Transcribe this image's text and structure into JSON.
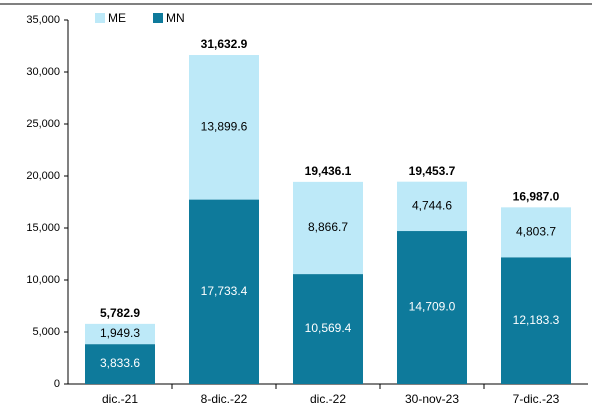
{
  "chart_data": {
    "type": "stacked_bar",
    "categories": [
      "dic.-21",
      "8-dic.-22",
      "dic.-22",
      "30-nov-23",
      "7-dic.-23"
    ],
    "series": [
      {
        "name": "MN",
        "color": "#0e7a9b",
        "values": [
          3833.6,
          17733.4,
          10569.4,
          14709.0,
          12183.3
        ],
        "value_labels": [
          "3,833.6",
          "17,733.4",
          "10,569.4",
          "14,709.0",
          "12,183.3"
        ]
      },
      {
        "name": "ME",
        "color": "#bde9f8",
        "values": [
          1949.3,
          13899.6,
          8866.7,
          4744.6,
          4803.7
        ],
        "value_labels": [
          "1,949.3",
          "13,899.6",
          "8,866.7",
          "4,744.6",
          "4,803.7"
        ]
      }
    ],
    "totals": [
      5782.9,
      31632.9,
      19436.1,
      19453.7,
      16987.0
    ],
    "total_labels": [
      "5,782.9",
      "31,632.9",
      "19,436.1",
      "19,453.7",
      "16,987.0"
    ],
    "legend_order": [
      "ME",
      "MN"
    ],
    "ylim": [
      0,
      35000
    ],
    "yticks": [
      0,
      {
        "value": 5000,
        "label": "5,000"
      },
      {
        "value": 10000,
        "label": "10,000"
      },
      {
        "value": 15000,
        "label": "15,000"
      },
      {
        "value": 20000,
        "label": "20,000"
      },
      {
        "value": 25000,
        "label": "25,000"
      },
      {
        "value": 30000,
        "label": "30,000"
      },
      {
        "value": 35000,
        "label": "35,000"
      }
    ],
    "grid": false
  }
}
